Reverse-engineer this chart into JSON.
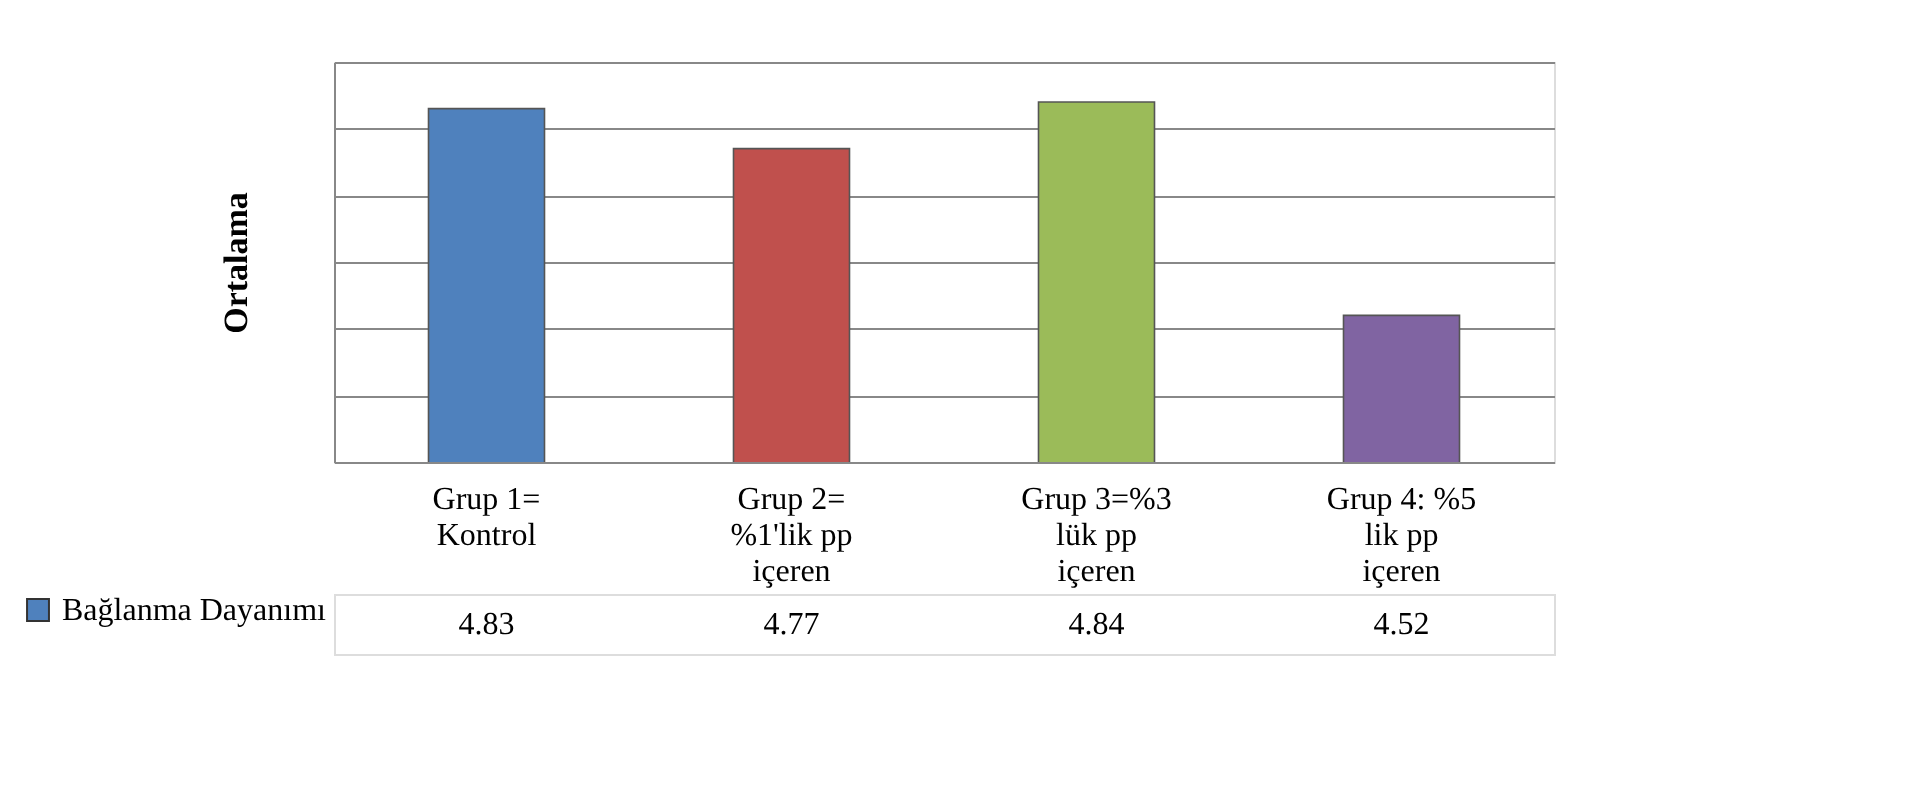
{
  "chart_data": {
    "type": "bar",
    "ylabel": "Ortalama",
    "categories": [
      "Grup 1= Kontrol",
      "Grup 2= %1'lik pp içeren",
      "Grup 3=%3 lük pp içeren",
      "Grup 4: %5 lik pp içeren"
    ],
    "series": [
      {
        "name": "Bağlanma Dayanımı",
        "color": "#4f81bd",
        "colors": [
          "#4f81bd",
          "#c0504d",
          "#9bbb59",
          "#8064a2"
        ],
        "values": [
          4.83,
          4.77,
          4.84,
          4.52
        ]
      }
    ],
    "ylim": [
      4.3,
      4.9
    ],
    "yticks": [
      4.3,
      4.4,
      4.5,
      4.6,
      4.7,
      4.8,
      4.9
    ],
    "tick_labels": "x",
    "grid": "y",
    "data_labels": true,
    "legend": "bottom left"
  }
}
